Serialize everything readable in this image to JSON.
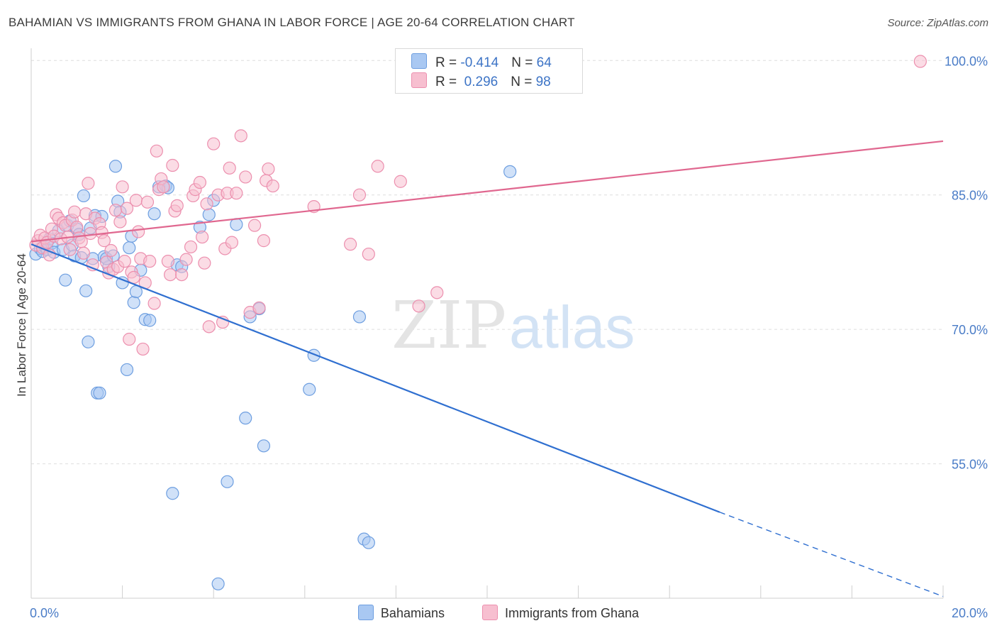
{
  "title": "BAHAMIAN VS IMMIGRANTS FROM GHANA IN LABOR FORCE | AGE 20-64 CORRELATION CHART",
  "source": "Source: ZipAtlas.com",
  "watermark": {
    "zip": "ZIP",
    "atlas": "atlas"
  },
  "legend_stats": [
    {
      "r_label": "R = ",
      "r_value": "-0.414",
      "n_label": "N = ",
      "n_value": "64",
      "color": "#a9c8f2",
      "border": "#6d9ee0"
    },
    {
      "r_label": "R = ",
      "r_value": " 0.296",
      "n_label": "N = ",
      "n_value": "98",
      "color": "#f7bfd0",
      "border": "#ec8fae"
    }
  ],
  "chart_data": {
    "type": "scatter",
    "xlabel": "",
    "ylabel": "In Labor Force | Age 20-64",
    "xlim": [
      0,
      20
    ],
    "ylim": [
      40,
      102
    ],
    "x_tick_labels": [
      {
        "value": 0,
        "label": "0.0%"
      },
      {
        "value": 20,
        "label": "20.0%"
      }
    ],
    "y_tick_labels": [
      {
        "value": 100,
        "label": "100.0%"
      },
      {
        "value": 85,
        "label": "85.0%"
      },
      {
        "value": 70,
        "label": "70.0%"
      },
      {
        "value": 55,
        "label": "55.0%"
      }
    ],
    "grid": true,
    "legend_position": "bottom",
    "series": [
      {
        "name": "Bahamians",
        "color": "#6d9ee0",
        "fill": "#a9c8f2",
        "line_color": "#2f6fd0",
        "trend": {
          "x0": 0,
          "y0": 79.5,
          "x1": 15.1,
          "y1": 49.6,
          "dashed_to_x": 20,
          "dashed_to_y": 40.2
        },
        "points": [
          [
            0.1,
            78.4
          ],
          [
            0.2,
            79.0
          ],
          [
            0.25,
            78.7
          ],
          [
            0.3,
            79.2
          ],
          [
            0.35,
            78.9
          ],
          [
            0.4,
            80.1
          ],
          [
            0.45,
            79.6
          ],
          [
            0.5,
            78.6
          ],
          [
            0.6,
            81.0
          ],
          [
            0.7,
            78.9
          ],
          [
            0.75,
            75.5
          ],
          [
            0.8,
            81.6
          ],
          [
            0.85,
            82.1
          ],
          [
            0.9,
            79.4
          ],
          [
            0.95,
            78.2
          ],
          [
            1.0,
            81.2
          ],
          [
            1.05,
            80.6
          ],
          [
            1.1,
            78.0
          ],
          [
            1.15,
            84.9
          ],
          [
            1.2,
            74.3
          ],
          [
            1.25,
            68.6
          ],
          [
            1.3,
            81.3
          ],
          [
            1.4,
            82.7
          ],
          [
            1.35,
            77.9
          ],
          [
            1.45,
            62.9
          ],
          [
            1.5,
            62.9
          ],
          [
            1.55,
            82.6
          ],
          [
            1.6,
            78.1
          ],
          [
            1.7,
            77.0
          ],
          [
            1.65,
            77.9
          ],
          [
            1.8,
            78.2
          ],
          [
            1.85,
            88.2
          ],
          [
            1.9,
            84.3
          ],
          [
            1.95,
            83.1
          ],
          [
            2.0,
            75.2
          ],
          [
            2.1,
            65.5
          ],
          [
            2.15,
            79.1
          ],
          [
            2.2,
            80.4
          ],
          [
            2.25,
            73.0
          ],
          [
            2.3,
            74.2
          ],
          [
            2.4,
            76.6
          ],
          [
            2.5,
            71.1
          ],
          [
            2.6,
            71.0
          ],
          [
            2.7,
            82.9
          ],
          [
            2.8,
            85.9
          ],
          [
            2.95,
            86.0
          ],
          [
            3.0,
            85.8
          ],
          [
            3.1,
            51.7
          ],
          [
            3.2,
            77.2
          ],
          [
            3.3,
            77.0
          ],
          [
            3.7,
            81.4
          ],
          [
            3.9,
            82.8
          ],
          [
            4.0,
            84.4
          ],
          [
            4.1,
            41.6
          ],
          [
            4.3,
            53.0
          ],
          [
            4.5,
            81.7
          ],
          [
            4.7,
            60.1
          ],
          [
            4.8,
            71.4
          ],
          [
            5.0,
            72.3
          ],
          [
            5.1,
            57.0
          ],
          [
            6.1,
            63.3
          ],
          [
            6.2,
            67.1
          ],
          [
            7.2,
            71.4
          ],
          [
            7.3,
            46.6
          ],
          [
            7.4,
            46.2
          ],
          [
            10.5,
            87.6
          ]
        ]
      },
      {
        "name": "Immigrants from Ghana",
        "color": "#ec8fae",
        "fill": "#f7bfd0",
        "line_color": "#e0678f",
        "trend": {
          "x0": 0,
          "y0": 79.8,
          "x1": 20,
          "y1": 91.0
        },
        "points": [
          [
            0.1,
            79.4
          ],
          [
            0.15,
            79.9
          ],
          [
            0.2,
            80.5
          ],
          [
            0.25,
            79.1
          ],
          [
            0.3,
            80.2
          ],
          [
            0.35,
            79.7
          ],
          [
            0.4,
            78.3
          ],
          [
            0.45,
            81.2
          ],
          [
            0.5,
            80.4
          ],
          [
            0.55,
            82.8
          ],
          [
            0.6,
            82.4
          ],
          [
            0.65,
            80.1
          ],
          [
            0.7,
            81.9
          ],
          [
            0.75,
            81.6
          ],
          [
            0.8,
            80.3
          ],
          [
            0.85,
            78.9
          ],
          [
            0.9,
            82.2
          ],
          [
            0.95,
            83.1
          ],
          [
            1.0,
            81.4
          ],
          [
            1.05,
            80.2
          ],
          [
            1.1,
            79.8
          ],
          [
            1.15,
            78.5
          ],
          [
            1.2,
            82.9
          ],
          [
            1.25,
            86.3
          ],
          [
            1.3,
            80.7
          ],
          [
            1.35,
            77.2
          ],
          [
            1.4,
            82.4
          ],
          [
            1.5,
            81.8
          ],
          [
            1.55,
            80.8
          ],
          [
            1.6,
            79.9
          ],
          [
            1.65,
            77.5
          ],
          [
            1.7,
            76.3
          ],
          [
            1.75,
            78.8
          ],
          [
            1.8,
            76.7
          ],
          [
            1.85,
            83.3
          ],
          [
            1.9,
            77.0
          ],
          [
            1.95,
            82.0
          ],
          [
            2.0,
            85.9
          ],
          [
            2.05,
            77.6
          ],
          [
            2.1,
            83.5
          ],
          [
            2.15,
            68.9
          ],
          [
            2.2,
            76.4
          ],
          [
            2.25,
            75.8
          ],
          [
            2.3,
            84.4
          ],
          [
            2.35,
            80.9
          ],
          [
            2.4,
            77.9
          ],
          [
            2.45,
            67.8
          ],
          [
            2.5,
            75.2
          ],
          [
            2.55,
            84.2
          ],
          [
            2.6,
            77.6
          ],
          [
            2.7,
            72.9
          ],
          [
            2.75,
            89.9
          ],
          [
            2.8,
            85.6
          ],
          [
            2.85,
            86.8
          ],
          [
            2.9,
            85.9
          ],
          [
            3.0,
            77.6
          ],
          [
            3.05,
            76.1
          ],
          [
            3.1,
            88.3
          ],
          [
            3.15,
            83.2
          ],
          [
            3.2,
            83.8
          ],
          [
            3.3,
            76.1
          ],
          [
            3.4,
            77.8
          ],
          [
            3.5,
            79.2
          ],
          [
            3.55,
            84.9
          ],
          [
            3.6,
            85.6
          ],
          [
            3.7,
            86.4
          ],
          [
            3.75,
            80.3
          ],
          [
            3.8,
            77.4
          ],
          [
            3.85,
            84.0
          ],
          [
            3.9,
            70.3
          ],
          [
            4.0,
            90.7
          ],
          [
            4.1,
            85.0
          ],
          [
            4.2,
            70.8
          ],
          [
            4.25,
            79.0
          ],
          [
            4.3,
            85.2
          ],
          [
            4.35,
            88.0
          ],
          [
            4.4,
            79.7
          ],
          [
            4.5,
            85.2
          ],
          [
            4.6,
            91.6
          ],
          [
            4.7,
            87.0
          ],
          [
            4.8,
            71.9
          ],
          [
            4.9,
            81.6
          ],
          [
            5.0,
            72.4
          ],
          [
            5.1,
            79.9
          ],
          [
            5.15,
            86.6
          ],
          [
            5.2,
            87.9
          ],
          [
            5.3,
            86.0
          ],
          [
            6.2,
            83.7
          ],
          [
            7.0,
            79.5
          ],
          [
            7.2,
            85.0
          ],
          [
            7.4,
            78.4
          ],
          [
            7.6,
            88.2
          ],
          [
            8.1,
            86.5
          ],
          [
            8.5,
            72.6
          ],
          [
            8.9,
            74.1
          ],
          [
            19.5,
            99.9
          ]
        ]
      }
    ]
  }
}
